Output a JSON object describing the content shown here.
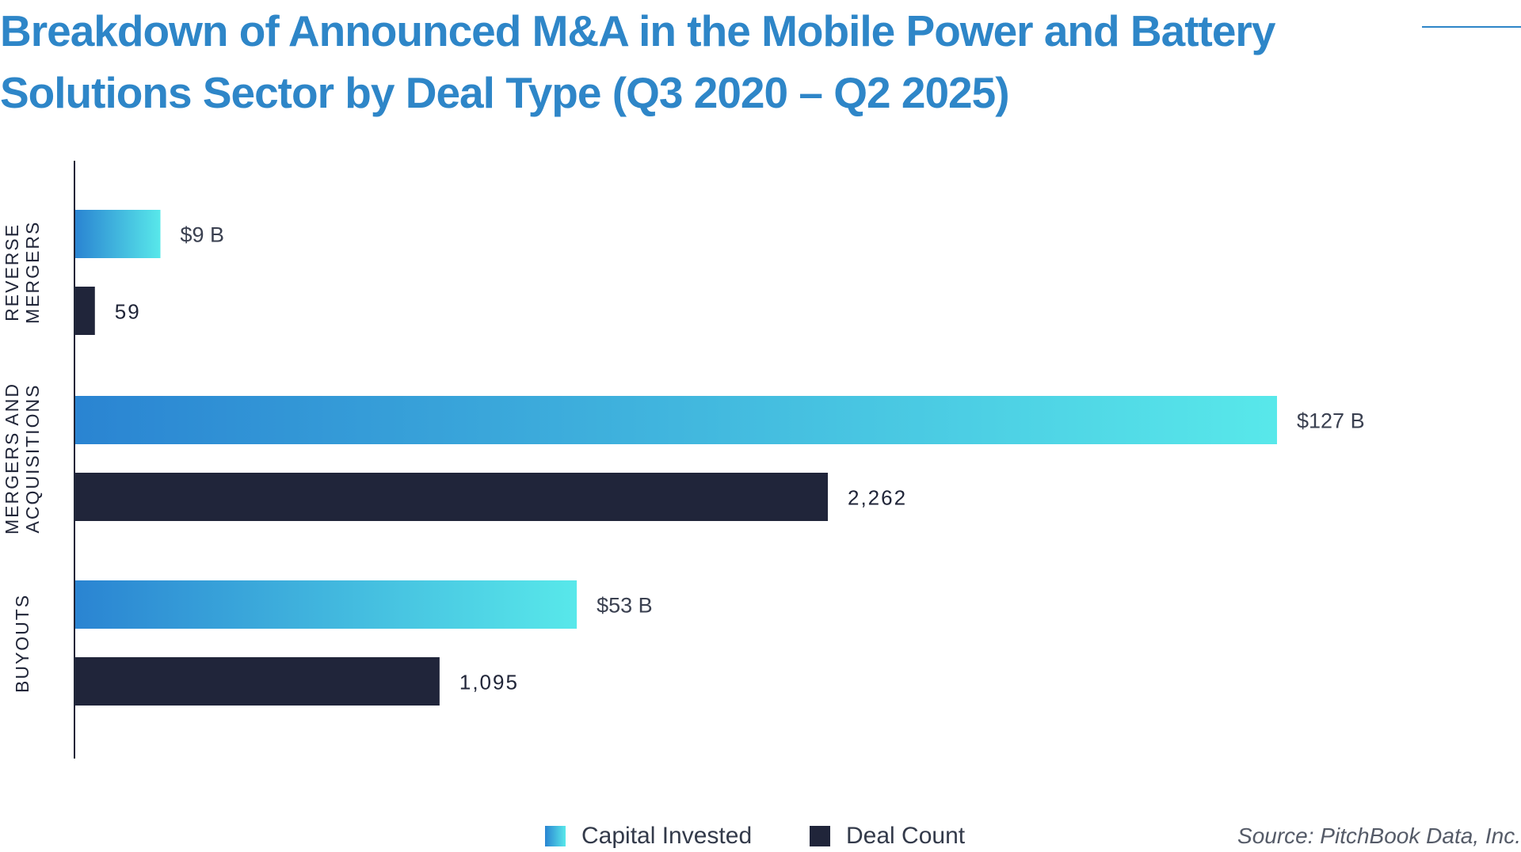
{
  "title": "Breakdown of Announced M&A in the Mobile Power and Battery Solutions Sector by Deal Type (Q3 2020 – Q2 2025)",
  "source": "Source: PitchBook Data, Inc.",
  "legend": {
    "capital_label": "Capital Invested",
    "deal_label": "Deal Count"
  },
  "colors": {
    "title": "#2e86c8",
    "capital_start": "#2a84d2",
    "capital_end": "#58e8ea",
    "deal": "#20253a",
    "axis": "#202538"
  },
  "chart_data": {
    "type": "bar",
    "orientation": "horizontal",
    "categories": [
      "REVERSE MERGERS",
      "MERGERS AND ACQUISITIONS",
      "BUYOUTS"
    ],
    "category_lines": [
      [
        "REVERSE",
        "MERGERS"
      ],
      [
        "MERGERS AND",
        "ACQUISITIONS"
      ],
      [
        "BUYOUTS"
      ]
    ],
    "series": [
      {
        "name": "Capital Invested",
        "values": [
          9,
          127,
          53
        ],
        "unit": "$B",
        "labels": [
          "$9 B",
          "$127 B",
          "$53 B"
        ]
      },
      {
        "name": "Deal Count",
        "values": [
          59,
          2262,
          1095
        ],
        "labels": [
          "59",
          "2,262",
          "1,095"
        ]
      }
    ],
    "grid": false,
    "legend_position": "bottom"
  }
}
